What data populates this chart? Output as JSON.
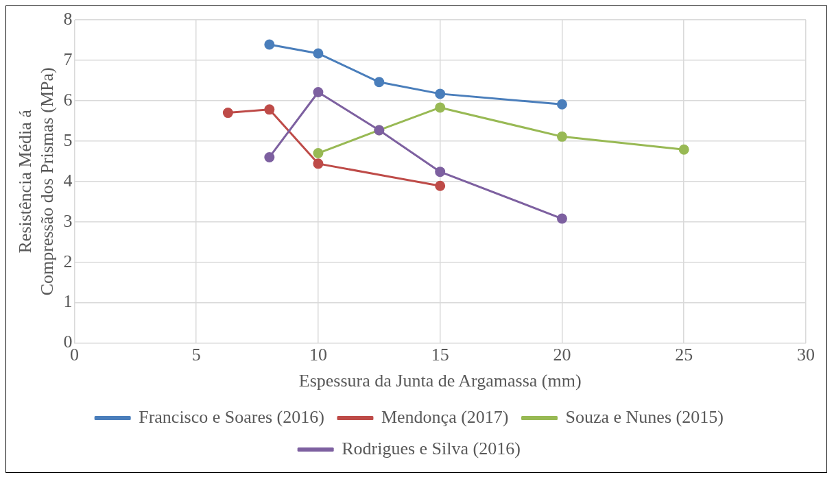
{
  "chart_data": {
    "type": "line",
    "xlabel": "Espessura da Junta de Argamassa (mm)",
    "ylabel": "Resistência Média á Compressão dos Prismas (MPa)",
    "xlim": [
      0,
      30
    ],
    "xticks": [
      0,
      5,
      10,
      15,
      20,
      25,
      30
    ],
    "ylim": [
      0,
      8
    ],
    "yticks": [
      0,
      1,
      2,
      3,
      4,
      5,
      6,
      7,
      8
    ],
    "grid": true,
    "legend": "bottom",
    "marker": "circle",
    "line_style": "solid",
    "series": [
      {
        "name": "Francisco e Soares (2016)",
        "color": "#4a7ebb",
        "x": [
          8,
          10,
          12.5,
          15,
          20
        ],
        "values": [
          7.39,
          7.17,
          6.46,
          6.17,
          5.91
        ]
      },
      {
        "name": "Mendonça (2017)",
        "color": "#be4b48",
        "x": [
          6.3,
          8,
          10,
          15
        ],
        "values": [
          5.7,
          5.78,
          4.44,
          3.89
        ]
      },
      {
        "name": "Souza e Nunes (2015)",
        "color": "#98b954",
        "x": [
          10,
          12.5,
          15,
          20,
          25
        ],
        "values": [
          4.7,
          5.27,
          5.83,
          5.11,
          4.79
        ]
      },
      {
        "name": "Rodrigues e Silva (2016)",
        "color": "#7d60a0",
        "x": [
          8,
          10,
          12.5,
          15,
          20
        ],
        "values": [
          4.6,
          6.21,
          5.27,
          4.24,
          3.08
        ]
      }
    ]
  }
}
